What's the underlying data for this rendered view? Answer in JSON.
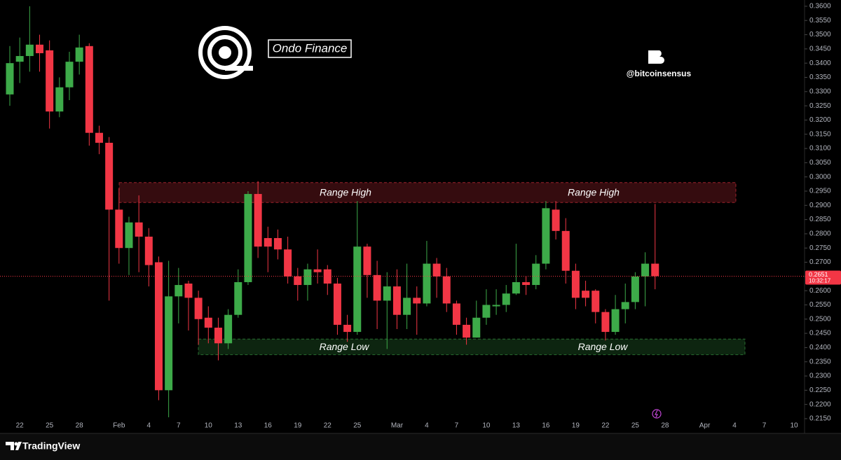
{
  "chart_data": {
    "type": "candlestick",
    "categories": [
      null,
      "22",
      null,
      null,
      "25",
      null,
      null,
      "28",
      null,
      null,
      null,
      "Feb",
      null,
      null,
      "4",
      null,
      null,
      "7",
      null,
      null,
      "10",
      null,
      null,
      "13",
      null,
      null,
      "16",
      null,
      null,
      "19",
      null,
      null,
      "22",
      null,
      null,
      "25",
      null,
      null,
      null,
      "Mar",
      null,
      null,
      "4",
      null,
      null,
      "7",
      null,
      null,
      "10",
      null,
      null,
      "13",
      null,
      null,
      "16",
      null,
      null,
      "19",
      null,
      null,
      "22",
      null,
      null,
      "25",
      null,
      null,
      "28",
      null,
      null,
      null,
      "Apr",
      null,
      null,
      "4",
      null,
      null,
      "7",
      null,
      null,
      "10"
    ],
    "open": [
      0.329,
      0.3405,
      0.3425,
      0.3465,
      0.3445,
      0.323,
      0.3315,
      0.3405,
      0.346,
      0.3155,
      0.312,
      0.2885,
      0.275,
      0.284,
      0.279,
      0.27,
      0.225,
      0.258,
      0.2625,
      0.2575,
      0.2505,
      0.247,
      0.2415,
      0.2515,
      0.263,
      0.294,
      0.2785,
      0.2785,
      0.2745,
      0.265,
      0.262,
      0.2675,
      0.2675,
      0.2625,
      0.248,
      0.2455,
      0.2755,
      0.2655,
      0.2565,
      0.2615,
      0.2515,
      0.2575,
      0.2555,
      0.2695,
      0.265,
      0.2555,
      0.248,
      0.2435,
      0.2505,
      0.2545,
      0.255,
      0.259,
      0.263,
      0.262,
      0.2695,
      0.2885,
      0.281,
      0.267,
      0.26,
      0.26,
      0.2525,
      0.2455,
      0.2535,
      0.256,
      0.265,
      0.2695,
      null,
      null,
      null,
      null,
      null,
      null,
      null,
      null,
      null,
      null,
      null,
      null,
      null,
      null
    ],
    "high": [
      0.346,
      0.349,
      0.36,
      0.35,
      0.348,
      0.335,
      0.344,
      0.35,
      0.347,
      0.318,
      0.314,
      0.296,
      0.286,
      0.2935,
      0.282,
      0.272,
      0.2705,
      0.268,
      0.2635,
      0.26,
      0.2545,
      0.2505,
      0.2535,
      0.2675,
      0.295,
      0.2985,
      0.2825,
      0.2815,
      0.279,
      0.268,
      0.2695,
      0.2745,
      0.269,
      0.2645,
      0.2515,
      0.2915,
      0.2765,
      0.2705,
      0.2665,
      0.2675,
      0.2695,
      0.2615,
      0.2775,
      0.2715,
      0.268,
      0.2565,
      0.2505,
      0.2565,
      0.2605,
      0.2605,
      0.262,
      0.2765,
      0.265,
      0.2725,
      0.2915,
      0.2915,
      0.2855,
      0.2695,
      0.2635,
      0.2605,
      0.2535,
      0.2585,
      0.2625,
      0.2665,
      0.2735,
      0.2905,
      null,
      null,
      null,
      null,
      null,
      null,
      null,
      null,
      null,
      null,
      null,
      null,
      null,
      null
    ],
    "low": [
      0.325,
      0.333,
      0.337,
      0.337,
      0.317,
      0.321,
      0.327,
      0.336,
      0.311,
      0.308,
      0.2565,
      0.2695,
      0.2655,
      0.2665,
      0.2615,
      0.2215,
      0.2155,
      0.2485,
      0.246,
      0.241,
      0.2415,
      0.2355,
      0.2395,
      0.2505,
      0.262,
      0.2715,
      0.2665,
      0.271,
      0.2625,
      0.2565,
      0.2565,
      0.2625,
      0.2585,
      0.2445,
      0.242,
      0.2445,
      0.2575,
      0.2465,
      0.2395,
      0.2465,
      0.2465,
      0.2445,
      0.2545,
      0.2575,
      0.2525,
      0.2445,
      0.241,
      0.2435,
      0.248,
      0.2515,
      0.2525,
      0.2585,
      0.2585,
      0.2605,
      0.2675,
      0.278,
      0.2625,
      0.2535,
      0.2545,
      0.2485,
      0.2425,
      0.2445,
      0.2485,
      0.2535,
      0.2545,
      0.2605,
      null,
      null,
      null,
      null,
      null,
      null,
      null,
      null,
      null,
      null,
      null,
      null,
      null,
      null
    ],
    "close": [
      0.34,
      0.3425,
      0.3465,
      0.3435,
      0.323,
      0.3315,
      0.3405,
      0.3455,
      0.3155,
      0.312,
      0.2885,
      0.275,
      0.284,
      0.279,
      0.269,
      0.225,
      0.258,
      0.262,
      0.2575,
      0.25,
      0.247,
      0.2415,
      0.2515,
      0.263,
      0.294,
      0.2755,
      0.2755,
      0.2745,
      0.265,
      0.262,
      0.2675,
      0.2665,
      0.2625,
      0.248,
      0.2455,
      0.2755,
      0.2655,
      0.2565,
      0.2615,
      0.2515,
      0.2575,
      0.2555,
      0.2695,
      0.265,
      0.2555,
      0.248,
      0.2435,
      0.2505,
      0.255,
      0.255,
      0.259,
      0.263,
      0.262,
      0.2695,
      0.289,
      0.281,
      0.267,
      0.2575,
      0.2575,
      0.2525,
      0.2455,
      0.2535,
      0.256,
      0.265,
      0.2695,
      0.2651,
      null,
      null,
      null,
      null,
      null,
      null,
      null,
      null,
      null,
      null,
      null,
      null,
      null,
      null
    ],
    "up_color": "#3daa49",
    "down_color": "#f23645",
    "ylim": [
      0.2145,
      0.3622
    ],
    "yticks": [
      {
        "value": 0.215,
        "label": "0.2150"
      },
      {
        "value": 0.22,
        "label": "0.2200"
      },
      {
        "value": 0.225,
        "label": "0.2250"
      },
      {
        "value": 0.23,
        "label": "0.2300"
      },
      {
        "value": 0.235,
        "label": "0.2350"
      },
      {
        "value": 0.24,
        "label": "0.2400"
      },
      {
        "value": 0.245,
        "label": "0.2450"
      },
      {
        "value": 0.25,
        "label": "0.2500"
      },
      {
        "value": 0.255,
        "label": "0.2550"
      },
      {
        "value": 0.26,
        "label": "0.2600"
      },
      {
        "value": 0.265,
        "label": "0.2650"
      },
      {
        "value": 0.27,
        "label": "0.2700"
      },
      {
        "value": 0.275,
        "label": "0.2750"
      },
      {
        "value": 0.28,
        "label": "0.2800"
      },
      {
        "value": 0.285,
        "label": "0.2850"
      },
      {
        "value": 0.29,
        "label": "0.2900"
      },
      {
        "value": 0.295,
        "label": "0.2950"
      },
      {
        "value": 0.3,
        "label": "0.3000"
      },
      {
        "value": 0.305,
        "label": "0.3050"
      },
      {
        "value": 0.31,
        "label": "0.3100"
      },
      {
        "value": 0.315,
        "label": "0.3150"
      },
      {
        "value": 0.32,
        "label": "0.3200"
      },
      {
        "value": 0.325,
        "label": "0.3250"
      },
      {
        "value": 0.33,
        "label": "0.3300"
      },
      {
        "value": 0.335,
        "label": "0.3350"
      },
      {
        "value": 0.34,
        "label": "0.3400"
      },
      {
        "value": 0.345,
        "label": "0.3450"
      },
      {
        "value": 0.35,
        "label": "0.3500"
      },
      {
        "value": 0.355,
        "label": "0.3550"
      },
      {
        "value": 0.36,
        "label": "0.3600"
      }
    ],
    "current_price": 0.2651,
    "countdown": "10:32:17",
    "zones": [
      {
        "labels": [
          "Range High",
          "Range High"
        ],
        "range": [
          0.291,
          0.298
        ],
        "color": "#f23645"
      },
      {
        "labels": [
          "Range Low",
          "Range Low"
        ],
        "range": [
          0.2375,
          0.243
        ],
        "color": "#3daa49"
      }
    ]
  },
  "branding": {
    "project": "Ondo Finance",
    "handle": "@bitcoinsensus",
    "platform": "TradingView"
  }
}
